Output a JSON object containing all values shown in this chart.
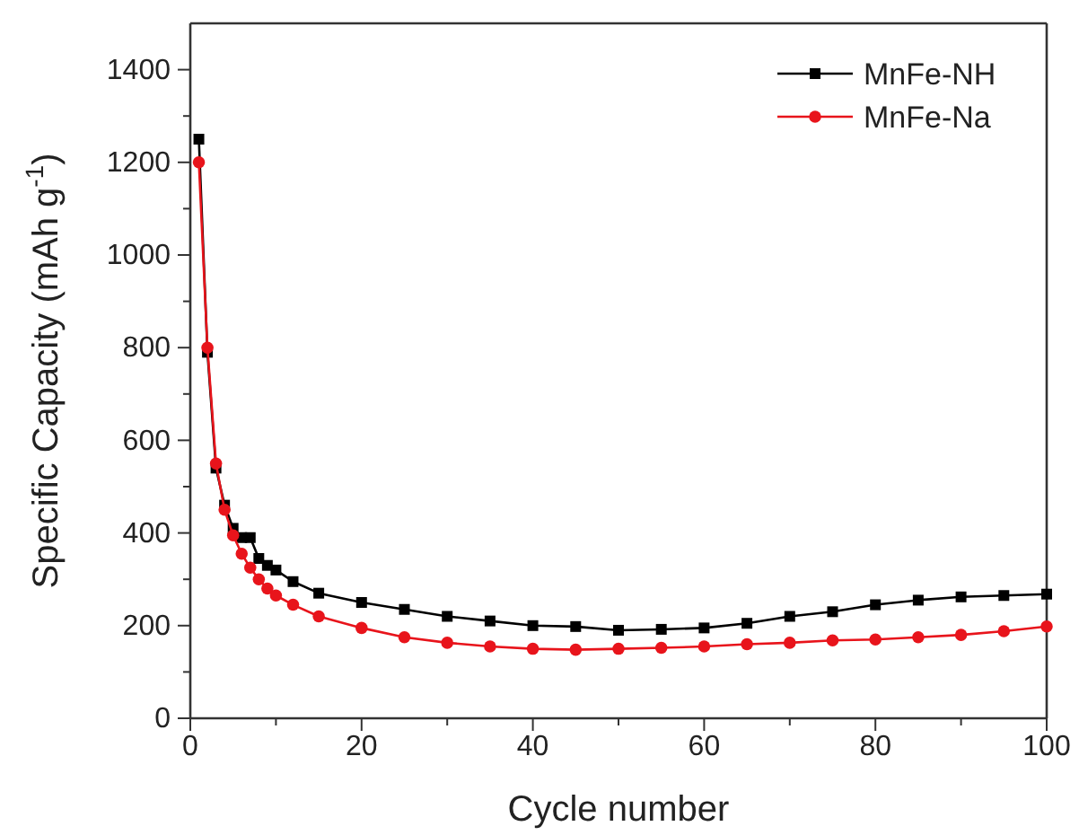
{
  "chart_data": {
    "type": "line",
    "xlabel": "Cycle number",
    "ylabel": "Specific Capacity (mAh g$^{-1}$)",
    "xlim": [
      0,
      100
    ],
    "ylim": [
      0,
      1500
    ],
    "xticks": [
      0,
      {
        "value": 10,
        "label": null
      },
      20,
      {
        "value": 30,
        "label": null
      },
      40,
      {
        "value": 50,
        "label": null
      },
      60,
      {
        "value": 70,
        "label": null
      },
      80,
      {
        "value": 90,
        "label": null
      },
      100
    ],
    "yticks": [
      0,
      {
        "value": 100,
        "label": null
      },
      200,
      {
        "value": 300,
        "label": null
      },
      400,
      {
        "value": 500,
        "label": null
      },
      600,
      {
        "value": 700,
        "label": null
      },
      800,
      {
        "value": 900,
        "label": null
      },
      1000,
      {
        "value": 1100,
        "label": null
      },
      1200,
      {
        "value": 1300,
        "label": null
      },
      1400
    ],
    "legend": "top right",
    "grid": false,
    "x": [
      1,
      2,
      3,
      4,
      5,
      6,
      7,
      8,
      9,
      10,
      12,
      15,
      20,
      25,
      30,
      35,
      40,
      45,
      50,
      55,
      60,
      65,
      70,
      75,
      80,
      85,
      90,
      95,
      100
    ],
    "series": [
      {
        "name": "MnFe-NH",
        "color": "#000000",
        "marker": "square",
        "values": [
          1250,
          790,
          540,
          460,
          410,
          390,
          390,
          345,
          330,
          320,
          295,
          270,
          250,
          235,
          220,
          210,
          200,
          198,
          190,
          192,
          195,
          205,
          220,
          230,
          245,
          255,
          262,
          265,
          268
        ]
      },
      {
        "name": "MnFe-Na",
        "color": "#e8141b",
        "marker": "circle",
        "values": [
          1200,
          800,
          550,
          450,
          395,
          355,
          325,
          300,
          280,
          265,
          245,
          220,
          195,
          175,
          163,
          155,
          150,
          148,
          150,
          152,
          155,
          160,
          163,
          168,
          170,
          175,
          180,
          188,
          198
        ]
      }
    ]
  }
}
